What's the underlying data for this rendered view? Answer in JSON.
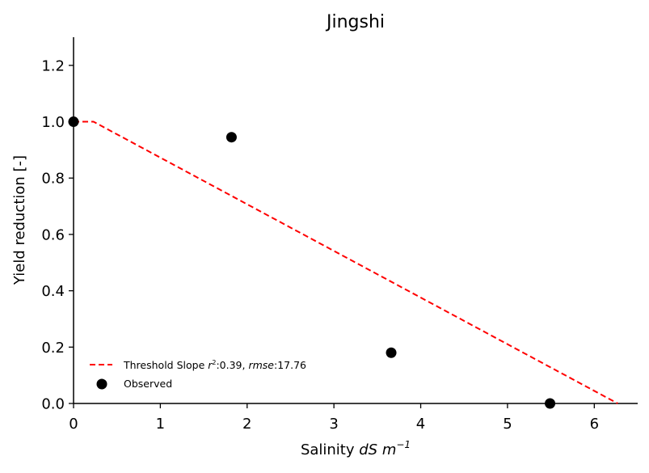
{
  "chart_data": {
    "type": "scatter",
    "title": "Jingshi",
    "xlabel": {
      "prefix": "Salinity ",
      "italic": "dS m",
      "superscript": "−1"
    },
    "ylabel": "Yield reduction [-]",
    "xlim": [
      0,
      6.5
    ],
    "ylim": [
      0,
      1.3
    ],
    "x_ticks": [
      0,
      1,
      2,
      3,
      4,
      5,
      6
    ],
    "y_ticks": [
      0.0,
      0.2,
      0.4,
      0.6,
      0.8,
      1.0,
      1.2
    ],
    "x_tick_labels": [
      "0",
      "1",
      "2",
      "3",
      "4",
      "5",
      "6"
    ],
    "y_tick_labels": [
      "0.0",
      "0.2",
      "0.4",
      "0.6",
      "0.8",
      "1.0",
      "1.2"
    ],
    "grid": false,
    "legend_position": "lower-left",
    "series": [
      {
        "name": "Threshold Slope",
        "kind": "line",
        "style": "dashed",
        "color": "#ff0000",
        "x": [
          0,
          0.23,
          6.27
        ],
        "y": [
          1.0,
          1.0,
          0.0
        ]
      },
      {
        "name": "Observed",
        "kind": "scatter",
        "color": "#000000",
        "x": [
          0.0,
          1.82,
          3.66,
          5.49
        ],
        "y": [
          1.0,
          0.945,
          0.18,
          0.0
        ]
      }
    ],
    "legend": [
      {
        "series": "Threshold Slope",
        "label_prefix": "Threshold Slope ",
        "stat1_name": "r",
        "stat1_sup": "2",
        "stat1_value": ":0.39, ",
        "stat2_name": "rmse",
        "stat2_value": ":17.76"
      },
      {
        "series": "Observed",
        "label": "Observed"
      }
    ]
  }
}
